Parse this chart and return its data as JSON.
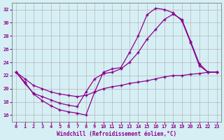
{
  "bg_color": "#d6eff5",
  "line_color": "#8b008b",
  "grid_color": "#aaaaaa",
  "xlabel": "Windchill (Refroidissement éolien,°C)",
  "xlabel_color": "#8b008b",
  "xlim": [
    -0.5,
    23.5
  ],
  "ylim": [
    15.0,
    33.0
  ],
  "yticks": [
    16,
    18,
    20,
    22,
    24,
    26,
    28,
    30,
    32
  ],
  "xticks": [
    0,
    1,
    2,
    3,
    4,
    5,
    6,
    7,
    8,
    9,
    10,
    11,
    12,
    13,
    14,
    15,
    16,
    17,
    18,
    19,
    20,
    21,
    22,
    23
  ],
  "curve1_x": [
    0,
    1,
    2,
    3,
    4,
    5,
    6,
    7,
    8,
    9,
    10,
    11,
    12,
    13,
    14,
    15,
    16,
    17,
    18,
    19,
    20,
    21,
    22,
    23
  ],
  "curve1_y": [
    22.5,
    21.0,
    19.2,
    18.2,
    17.4,
    16.8,
    16.5,
    16.3,
    16.0,
    19.5,
    22.5,
    23.0,
    23.2,
    25.5,
    28.0,
    31.2,
    32.2,
    32.0,
    31.5,
    30.3,
    27.0,
    23.5,
    22.5,
    22.5
  ],
  "curve2_x": [
    0,
    1,
    2,
    3,
    4,
    5,
    6,
    7,
    8,
    9,
    10,
    11,
    12,
    13,
    14,
    15,
    16,
    17,
    18,
    19,
    20,
    21,
    22,
    23
  ],
  "curve2_y": [
    22.5,
    20.8,
    19.3,
    18.8,
    18.3,
    17.8,
    17.5,
    17.3,
    19.5,
    21.5,
    22.3,
    22.5,
    23.0,
    24.0,
    25.5,
    27.5,
    29.0,
    30.5,
    31.3,
    30.5,
    27.2,
    23.8,
    22.5,
    22.5
  ],
  "curve3_x": [
    0,
    1,
    2,
    3,
    4,
    5,
    6,
    7,
    8,
    9,
    10,
    11,
    12,
    13,
    14,
    15,
    16,
    17,
    18,
    19,
    20,
    21,
    22,
    23
  ],
  "curve3_y": [
    22.5,
    21.5,
    20.5,
    20.0,
    19.5,
    19.2,
    19.0,
    18.8,
    19.0,
    19.5,
    20.0,
    20.3,
    20.5,
    20.8,
    21.0,
    21.2,
    21.5,
    21.8,
    22.0,
    22.0,
    22.2,
    22.3,
    22.5,
    22.5
  ]
}
